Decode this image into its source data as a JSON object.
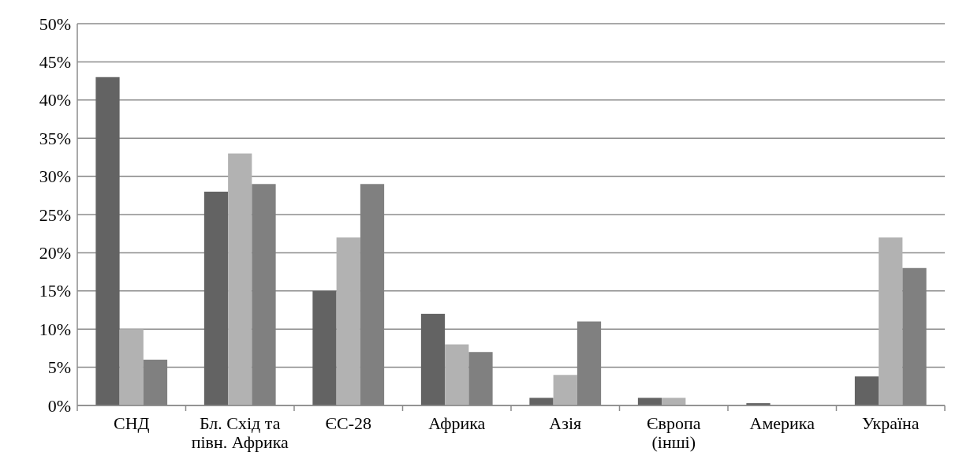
{
  "chart_data": {
    "type": "bar",
    "categories": [
      "СНД",
      "Бл. Схід та півн. Африка",
      "ЄС-28",
      "Африка",
      "Азія",
      "Європа (інші)",
      "Америка",
      "Україна"
    ],
    "series": [
      {
        "color": "#636363",
        "values": [
          43,
          28,
          15,
          12,
          1,
          1,
          0.3,
          3.8
        ]
      },
      {
        "color": "#b2b2b2",
        "values": [
          10,
          33,
          22,
          8,
          4,
          1,
          0,
          22
        ]
      },
      {
        "color": "#808080",
        "values": [
          6,
          29,
          29,
          7,
          11,
          0,
          0,
          18
        ]
      }
    ],
    "ylim": [
      0,
      50
    ],
    "yticks": [
      {
        "value": 0,
        "label": "0%"
      },
      {
        "value": 5,
        "label": "5%"
      },
      {
        "value": 10,
        "label": "10%"
      },
      {
        "value": 15,
        "label": "15%"
      },
      {
        "value": 20,
        "label": "20%"
      },
      {
        "value": 25,
        "label": "25%"
      },
      {
        "value": 30,
        "label": "30%"
      },
      {
        "value": 35,
        "label": "35%"
      },
      {
        "value": 40,
        "label": "40%"
      },
      {
        "value": 45,
        "label": "45%"
      },
      {
        "value": 50,
        "label": "50%"
      }
    ],
    "grid": "y"
  }
}
